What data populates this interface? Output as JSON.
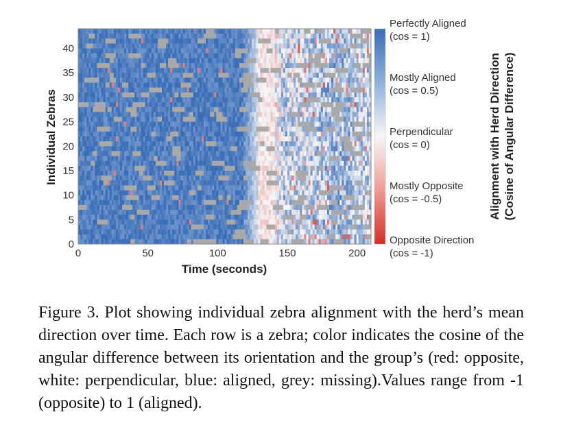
{
  "chart_data": {
    "type": "heatmap",
    "title": "",
    "xlabel": "Time (seconds)",
    "ylabel": "Individual Zebras",
    "xlim": [
      0,
      210
    ],
    "ylim": [
      0,
      44
    ],
    "x_ticks": [
      "0",
      "50",
      "100",
      "150",
      "200"
    ],
    "y_ticks": [
      "0",
      "5",
      "10",
      "15",
      "20",
      "25",
      "30",
      "35",
      "40"
    ],
    "value_range": [
      -1,
      1
    ],
    "missing_color": "#a9a9a9",
    "colors": {
      "aligned": "#3f72b8",
      "perpendicular": "#f5f5f5",
      "opposite": "#d73027"
    },
    "colorbar": {
      "title": [
        "Alignment with Herd Direction",
        "(Cosine of Angular Difference)"
      ],
      "labels": [
        {
          "name": "Perfectly Aligned",
          "value": "(cos = 1)"
        },
        {
          "name": "Mostly Aligned",
          "value": "(cos = 0.5)"
        },
        {
          "name": "Perpendicular",
          "value": "(cos = 0)"
        },
        {
          "name": "Mostly Opposite",
          "value": "(cos = -0.5)"
        },
        {
          "name": "Opposite Direction",
          "value": "(cos = -1)"
        }
      ]
    }
  },
  "caption": "Figure 3. Plot showing individual zebra alignment with the herd’s mean direction over time.  Each row is a zebra; color indicates the cosine of the angular difference between its orientation and the group’s (red: opposite, white: perpendicular, blue: aligned, grey: missing).Values range from -1 (opposite) to 1 (aligned)."
}
